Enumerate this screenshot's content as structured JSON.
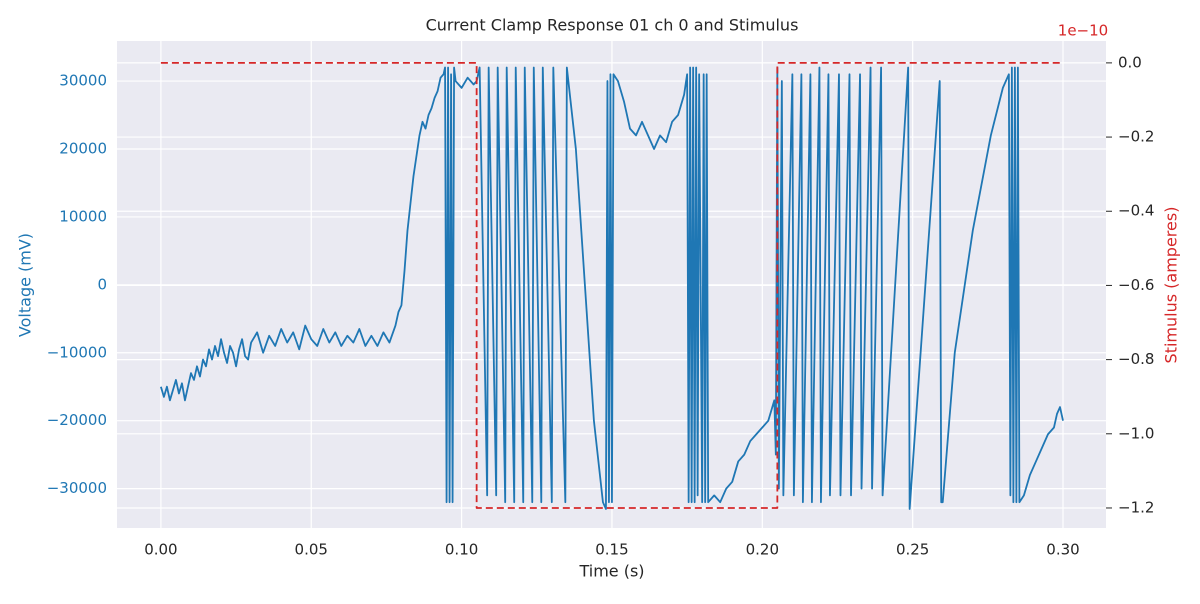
{
  "chart_data": {
    "type": "line",
    "title": "Current Clamp Response 01 ch 0 and Stimulus",
    "x_label": "Time (s)",
    "y_label": "Voltage (mV)",
    "y2_label": "Stimulus (amperes)",
    "y2_offset_label": "1e−10",
    "grid": true,
    "xlim": [
      -0.0146,
      0.3143
    ],
    "xticks": [
      {
        "value": 0,
        "label": "0.00"
      },
      {
        "value": 0.05,
        "label": "0.05"
      },
      {
        "value": 0.1,
        "label": "0.10"
      },
      {
        "value": 0.15,
        "label": "0.15"
      },
      {
        "value": 0.2,
        "label": "0.20"
      },
      {
        "value": 0.25,
        "label": "0.25"
      },
      {
        "value": 0.3,
        "label": "0.30"
      }
    ],
    "ylim": [
      -35800,
      35900
    ],
    "yticks": [
      {
        "value": -30000,
        "label": "−30000"
      },
      {
        "value": -20000,
        "label": "−20000"
      },
      {
        "value": -10000,
        "label": "−10000"
      },
      0,
      10000,
      20000,
      30000
    ],
    "y2lim": [
      -1.254e-10,
      5.9e-12
    ],
    "y2ticks": [
      {
        "value": -1.2e-10,
        "label": "−1.2"
      },
      {
        "value": -1e-10,
        "label": "−1.0"
      },
      {
        "value": -8e-11,
        "label": "−0.8"
      },
      {
        "value": -6e-11,
        "label": "−0.6"
      },
      {
        "value": -4e-11,
        "label": "−0.4"
      },
      {
        "value": -2e-11,
        "label": "−0.2"
      },
      {
        "value": 0,
        "label": "0.0"
      }
    ],
    "series": [
      {
        "color": "#1f77b4",
        "axis": "y",
        "x": [
          0,
          0.001,
          0.002,
          0.003,
          0.004,
          0.005,
          0.006,
          0.007,
          0.008,
          0.009,
          0.01,
          0.011,
          0.012,
          0.013,
          0.014,
          0.015,
          0.016,
          0.017,
          0.018,
          0.019,
          0.02,
          0.021,
          0.022,
          0.023,
          0.024,
          0.025,
          0.026,
          0.027,
          0.028,
          0.029,
          0.03,
          0.032,
          0.034,
          0.036,
          0.038,
          0.04,
          0.042,
          0.044,
          0.046,
          0.048,
          0.05,
          0.052,
          0.054,
          0.056,
          0.058,
          0.06,
          0.062,
          0.064,
          0.066,
          0.068,
          0.07,
          0.072,
          0.074,
          0.076,
          0.078,
          0.079,
          0.08,
          0.081,
          0.082,
          0.083,
          0.084,
          0.085,
          0.086,
          0.087,
          0.088,
          0.089,
          0.09,
          0.091,
          0.092,
          0.093,
          0.094,
          0.0945,
          0.095,
          0.0955,
          0.096,
          0.0965,
          0.097,
          0.0975,
          0.098,
          0.1,
          0.102,
          0.104,
          0.105,
          0.106,
          0.1085,
          0.109,
          0.1115,
          0.112,
          0.1145,
          0.115,
          0.1175,
          0.118,
          0.1205,
          0.121,
          0.1235,
          0.124,
          0.1265,
          0.127,
          0.13,
          0.1305,
          0.1345,
          0.135,
          0.138,
          0.141,
          0.144,
          0.147,
          0.148,
          0.1485,
          0.149,
          0.1495,
          0.15,
          0.1505,
          0.152,
          0.154,
          0.156,
          0.158,
          0.16,
          0.162,
          0.164,
          0.166,
          0.168,
          0.17,
          0.172,
          0.174,
          0.175,
          0.1755,
          0.176,
          0.1765,
          0.177,
          0.1775,
          0.178,
          0.1785,
          0.179,
          0.18,
          0.1805,
          0.181,
          0.1815,
          0.182,
          0.184,
          0.186,
          0.188,
          0.19,
          0.192,
          0.194,
          0.196,
          0.198,
          0.2,
          0.202,
          0.204,
          0.2045,
          0.205,
          0.2055,
          0.2065,
          0.207,
          0.21,
          0.2105,
          0.213,
          0.2135,
          0.216,
          0.2165,
          0.219,
          0.2195,
          0.222,
          0.2225,
          0.2255,
          0.226,
          0.229,
          0.2295,
          0.2325,
          0.233,
          0.236,
          0.2365,
          0.2395,
          0.24,
          0.2485,
          0.249,
          0.259,
          0.2595,
          0.26,
          0.264,
          0.27,
          0.276,
          0.28,
          0.282,
          0.2825,
          0.283,
          0.2835,
          0.284,
          0.2845,
          0.285,
          0.2855,
          0.287,
          0.289,
          0.291,
          0.293,
          0.295,
          0.297,
          0.298,
          0.299,
          0.3
        ],
        "values": [
          -15000,
          -16500,
          -15000,
          -17000,
          -15500,
          -14000,
          -16000,
          -14500,
          -17000,
          -15000,
          -13000,
          -14000,
          -12000,
          -13500,
          -11000,
          -12000,
          -9500,
          -11000,
          -9000,
          -10500,
          -8000,
          -10000,
          -11500,
          -9000,
          -10000,
          -12000,
          -9500,
          -8000,
          -10500,
          -11000,
          -8500,
          -7000,
          -10000,
          -7500,
          -9000,
          -6500,
          -8500,
          -7000,
          -9500,
          -6000,
          -8000,
          -9000,
          -6500,
          -8500,
          -7000,
          -9000,
          -7500,
          -8500,
          -6500,
          -9000,
          -7500,
          -9000,
          -7000,
          -8500,
          -6000,
          -4000,
          -3000,
          2000,
          8000,
          12000,
          16000,
          19000,
          22000,
          24000,
          23000,
          25000,
          26000,
          27500,
          28500,
          30500,
          31000,
          32000,
          -32000,
          32000,
          -32000,
          31000,
          -32000,
          32000,
          30000,
          29000,
          30500,
          29500,
          30000,
          32000,
          -31000,
          32000,
          -31000,
          32000,
          -32000,
          32000,
          -32000,
          32000,
          -32000,
          32000,
          -32000,
          32000,
          -32000,
          32000,
          -32000,
          32000,
          -32000,
          32000,
          20000,
          0,
          -20000,
          -32000,
          -33000,
          30000,
          -32000,
          31000,
          -32000,
          31000,
          30000,
          27000,
          23000,
          22000,
          24000,
          22000,
          20000,
          22000,
          21000,
          24000,
          25000,
          28000,
          31000,
          -32000,
          32000,
          -32000,
          32000,
          -32000,
          32000,
          -31000,
          31000,
          -32000,
          31000,
          -32000,
          31000,
          -32000,
          -31000,
          -32000,
          -30000,
          -29000,
          -26000,
          -25000,
          -23000,
          -22000,
          -21000,
          -20000,
          -17000,
          -25000,
          32000,
          -30000,
          30000,
          -31000,
          31000,
          -31000,
          31000,
          -32000,
          31000,
          -32000,
          32000,
          -32000,
          31000,
          -31000,
          31000,
          -31000,
          31000,
          -31000,
          31000,
          -30000,
          32000,
          -30000,
          32000,
          -31000,
          32000,
          -33000,
          30000,
          -32000,
          -32000,
          -10000,
          8000,
          22000,
          29000,
          31000,
          -31000,
          32000,
          -32000,
          32000,
          -32000,
          32000,
          -32000,
          -31000,
          -28000,
          -26000,
          -24000,
          -22000,
          -21000,
          -19000,
          -18000,
          -20000
        ]
      },
      {
        "color": "#d62728",
        "axis": "y2",
        "dashed": true,
        "x": [
          0,
          0.105,
          0.105,
          0.205,
          0.205,
          0.3
        ],
        "values": [
          0,
          0,
          -1.2e-10,
          -1.2e-10,
          0,
          0
        ]
      }
    ]
  }
}
